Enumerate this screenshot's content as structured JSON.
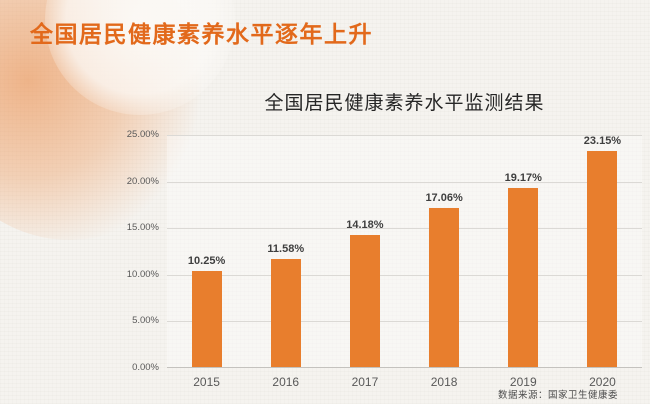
{
  "header": {
    "title": "全国居民健康素养水平逐年上升"
  },
  "chart": {
    "source_note": "数据来源：国家卫生健康委"
  },
  "chart_data": {
    "type": "bar",
    "title": "全国居民健康素养水平监测结果",
    "categories": [
      "2015",
      "2016",
      "2017",
      "2018",
      "2019",
      "2020"
    ],
    "values": [
      10.25,
      11.58,
      14.18,
      17.06,
      19.17,
      23.15
    ],
    "value_labels": [
      "10.25%",
      "11.58%",
      "14.18%",
      "17.06%",
      "19.17%",
      "23.15%"
    ],
    "xlabel": "",
    "ylabel": "",
    "ylim": [
      0,
      25
    ],
    "ytick_step": 5,
    "ytick_labels": [
      "0.00%",
      "5.00%",
      "10.00%",
      "15.00%",
      "20.00%",
      "25.00%"
    ],
    "grid": true,
    "legend": "none",
    "bar_color": "#e87e2d",
    "source": "数据来源：国家卫生健康委"
  },
  "colors": {
    "accent_orange": "#e2691b",
    "bar_orange": "#e87e2d",
    "background": "#f5f3ef",
    "gridline": "#dbd9d5",
    "text_dark": "#3f3f3f",
    "text_axis": "#595959"
  }
}
